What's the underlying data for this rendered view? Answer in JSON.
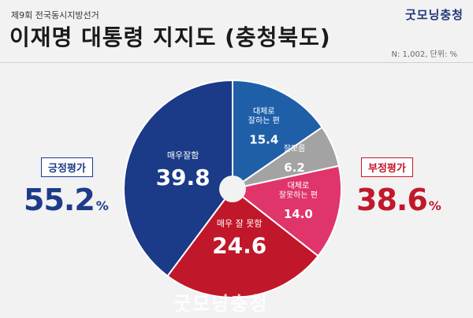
{
  "header": {
    "subtitle": "제9회 전국동시지방선거",
    "title": "이재명 대통령 지지도 (충청북도)",
    "logo": "굿모닝충청",
    "meta": "N: 1,002, 단위: %"
  },
  "summary": {
    "positive_label": "긍정평가",
    "positive_value": "55.2",
    "negative_label": "부정평가",
    "negative_value": "38.6",
    "unit": "%"
  },
  "watermark": "굿모닝충청",
  "colors": {
    "dark_blue": "#1b3a87",
    "light_blue": "#1f5fa8",
    "gray": "#a3a3a3",
    "pink": "#e0356a",
    "red": "#c1172a"
  },
  "chart_data": {
    "type": "pie",
    "title": "",
    "slices": [
      {
        "label_lines": [
          "대체로",
          "잘하는 편"
        ],
        "value": 15.4,
        "color": "#1f5fa8"
      },
      {
        "label_lines": [
          "잘모름"
        ],
        "value": 6.2,
        "color": "#a3a3a3"
      },
      {
        "label_lines": [
          "대체로",
          "잘못하는 편"
        ],
        "value": 14.0,
        "color": "#e0356a"
      },
      {
        "label_lines": [
          "매우 잘 못함"
        ],
        "value": 24.6,
        "color": "#c1172a"
      },
      {
        "label_lines": [
          "매우잘함"
        ],
        "value": 39.8,
        "color": "#1b3a87"
      }
    ]
  }
}
